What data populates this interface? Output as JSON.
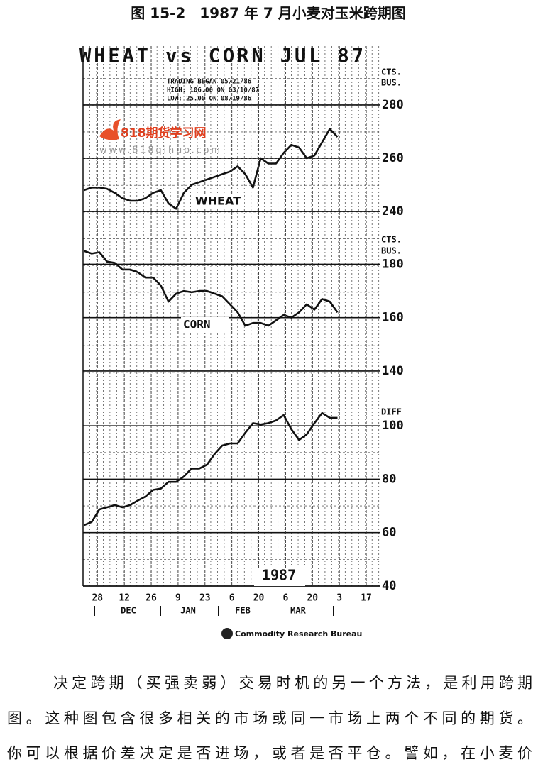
{
  "caption": "图 15-2　1987 年 7 月小麦对玉米跨期图",
  "chart_data": [
    {
      "type": "line",
      "title": "WHEAT vs CORN JUL 87",
      "annotations": [
        "TRADING BEGAN 05/21/86",
        "HIGH: 106.00 ON 03/10/87",
        "LOW: 25.00 ON 08/19/86"
      ],
      "ylabel": [
        "CTS.",
        "BUS."
      ],
      "x": [
        -7,
        -3,
        1,
        5,
        9,
        13,
        17,
        21,
        25,
        29,
        33,
        37,
        41,
        45,
        49,
        53,
        57,
        61,
        65,
        69,
        73,
        77,
        81,
        85,
        89,
        93,
        97,
        101,
        105,
        109,
        113,
        117,
        121,
        125
      ],
      "xlim": [
        -7.5,
        147
      ],
      "series": [
        {
          "name": "WHEAT",
          "color": "#111111",
          "values": [
            248,
            249,
            249,
            248.5,
            247,
            245,
            244,
            244,
            245,
            247,
            248,
            243,
            241,
            247,
            250,
            251,
            252,
            253,
            254,
            255,
            257,
            254,
            249,
            260,
            258,
            258,
            262,
            265,
            264,
            260,
            261,
            266,
            271,
            268
          ]
        }
      ],
      "ylim": [
        235,
        285
      ],
      "yticks": [
        240,
        260,
        280
      ],
      "grid": true
    },
    {
      "type": "line",
      "ylabel": [
        "CTS.",
        "BUS."
      ],
      "x": [
        -7,
        -3,
        1,
        5,
        9,
        13,
        17,
        21,
        25,
        29,
        33,
        37,
        41,
        45,
        49,
        53,
        57,
        61,
        65,
        69,
        73,
        77,
        81,
        85,
        89,
        93,
        97,
        101,
        105,
        109,
        113,
        117,
        121,
        125
      ],
      "xlim": [
        -7.5,
        147
      ],
      "series": [
        {
          "name": "CORN",
          "color": "#111111",
          "values": [
            185,
            184,
            184.5,
            181,
            180.5,
            178,
            178,
            177,
            175,
            175,
            172,
            166,
            169,
            170,
            169.5,
            170,
            170,
            169,
            168,
            165,
            162,
            157,
            158,
            158,
            157,
            159,
            161,
            160,
            162,
            165,
            163,
            167,
            166,
            162
          ]
        }
      ],
      "ylim": [
        135,
        185
      ],
      "yticks": [
        140,
        160,
        180
      ],
      "grid": true
    },
    {
      "type": "line",
      "ylabel": [
        "DIFF"
      ],
      "x": [
        -7,
        -3,
        1,
        5,
        9,
        13,
        17,
        21,
        25,
        29,
        33,
        37,
        41,
        45,
        49,
        53,
        57,
        61,
        65,
        69,
        73,
        77,
        81,
        85,
        89,
        93,
        97,
        101,
        105,
        109,
        113,
        117,
        121,
        125
      ],
      "xlim": [
        -7.5,
        147
      ],
      "xticks": [
        {
          "value": 0,
          "label": "28"
        },
        {
          "value": 14,
          "label": "12"
        },
        {
          "value": 28,
          "label": "26"
        },
        {
          "value": 42,
          "label": "9"
        },
        {
          "value": 56,
          "label": "23"
        },
        {
          "value": 70,
          "label": "6"
        },
        {
          "value": 84,
          "label": "20"
        },
        {
          "value": 98,
          "label": "6"
        },
        {
          "value": 112,
          "label": "20"
        },
        {
          "value": 126,
          "label": "3"
        },
        {
          "value": 140,
          "label": "17"
        }
      ],
      "xgroups": [
        "DEC",
        "JAN",
        "FEB",
        "MAR"
      ],
      "year": "1987",
      "series": [
        {
          "name": "DIFF",
          "color": "#111111",
          "values": [
            62.8,
            64,
            68.7,
            69.5,
            70.3,
            69.5,
            70.3,
            72,
            73.5,
            76,
            76.5,
            79,
            79,
            81,
            84,
            84,
            85.4,
            89.4,
            92.6,
            93.4,
            93.4,
            97.4,
            101,
            100.5,
            101,
            102,
            104,
            98.7,
            94.7,
            96.8,
            101,
            104.8,
            103,
            103
          ]
        }
      ],
      "ylim": [
        40,
        110
      ],
      "yticks": [
        40,
        60,
        80,
        100
      ],
      "grid": true
    }
  ],
  "source": "Commodity Research Bureau",
  "watermark": {
    "name": "818期货学习网",
    "url": "www.818qihuo.com"
  },
  "paragraph": [
    "决定跨期（买强卖弱）交易时机的另一个方法，是利用跨期",
    "图。这种图包含很多相关的市场或同一市场上两个不同的期货。",
    "你可以根据价差决定是否进场，或者是否平仓。譬如，在小麦价"
  ]
}
